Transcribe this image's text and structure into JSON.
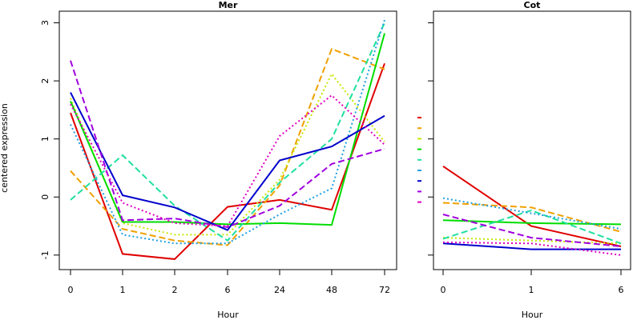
{
  "ylabel": "centered expression",
  "colors": [
    "#e00000",
    "#f0a000",
    "#c8e800",
    "#00dd00",
    "#20e0a0",
    "#20a0e0",
    "#0000cc",
    "#a000e0",
    "#e000c0"
  ],
  "chart_data": [
    {
      "type": "line",
      "title": "Mer",
      "xlabel": "Hour",
      "ylabel": "centered expression",
      "categories": [
        "0",
        "1",
        "2",
        "6",
        "24",
        "48",
        "72"
      ],
      "yticks": [
        "-1",
        "0",
        "1",
        "2",
        "3"
      ],
      "ylim": [
        -1.25,
        3.2
      ],
      "series": [
        {
          "values": [
            1.45,
            -0.98,
            -1.07,
            -0.17,
            -0.05,
            -0.22,
            2.3
          ],
          "color": "#e00000",
          "dash": "solid"
        },
        {
          "values": [
            0.45,
            -0.55,
            -0.75,
            -0.83,
            0.2,
            2.55,
            2.2
          ],
          "color": "#f0a000",
          "dash": "dashed"
        },
        {
          "values": [
            1.7,
            -0.45,
            -0.65,
            -0.65,
            0.3,
            2.12,
            0.95
          ],
          "color": "#c8e800",
          "dash": "dotted"
        },
        {
          "values": [
            1.65,
            -0.43,
            -0.43,
            -0.47,
            -0.45,
            -0.48,
            2.82
          ],
          "color": "#00dd00",
          "dash": "solid"
        },
        {
          "values": [
            -0.05,
            0.72,
            -0.15,
            -0.75,
            0.25,
            1.0,
            3.0
          ],
          "color": "#20e0a0",
          "dash": "dashed"
        },
        {
          "values": [
            1.25,
            -0.65,
            -0.8,
            -0.8,
            -0.3,
            0.15,
            3.05
          ],
          "color": "#20a0e0",
          "dash": "dotted"
        },
        {
          "values": [
            1.8,
            0.03,
            -0.18,
            -0.57,
            0.63,
            0.87,
            1.4
          ],
          "color": "#0000cc",
          "dash": "solid"
        },
        {
          "values": [
            2.35,
            -0.4,
            -0.37,
            -0.52,
            -0.15,
            0.57,
            0.83
          ],
          "color": "#a000e0",
          "dash": "dashed"
        },
        {
          "values": [
            1.6,
            -0.1,
            -0.45,
            -0.5,
            1.05,
            1.75,
            0.9
          ],
          "color": "#e000c0",
          "dash": "dotted"
        }
      ]
    },
    {
      "type": "line",
      "title": "Cot",
      "xlabel": "Hour",
      "categories": [
        "0",
        "1",
        "6"
      ],
      "ylim": [
        -1.25,
        3.2
      ],
      "series": [
        {
          "values": [
            0.53,
            -0.5,
            -0.85
          ],
          "color": "#e00000",
          "dash": "solid"
        },
        {
          "values": [
            -0.1,
            -0.18,
            -0.6
          ],
          "color": "#f0a000",
          "dash": "dashed"
        },
        {
          "values": [
            -0.7,
            -0.75,
            -0.8
          ],
          "color": "#c8e800",
          "dash": "dotted"
        },
        {
          "values": [
            -0.4,
            -0.45,
            -0.47
          ],
          "color": "#00dd00",
          "dash": "solid"
        },
        {
          "values": [
            -0.72,
            -0.23,
            -0.8
          ],
          "color": "#20e0a0",
          "dash": "dashed"
        },
        {
          "values": [
            -0.02,
            -0.28,
            -0.55
          ],
          "color": "#20a0e0",
          "dash": "dotted"
        },
        {
          "values": [
            -0.8,
            -0.9,
            -0.9
          ],
          "color": "#0000cc",
          "dash": "solid"
        },
        {
          "values": [
            -0.3,
            -0.7,
            -0.85
          ],
          "color": "#a000e0",
          "dash": "dashed"
        },
        {
          "values": [
            -0.78,
            -0.8,
            -1.0
          ],
          "color": "#e000c0",
          "dash": "dotted"
        }
      ]
    }
  ]
}
